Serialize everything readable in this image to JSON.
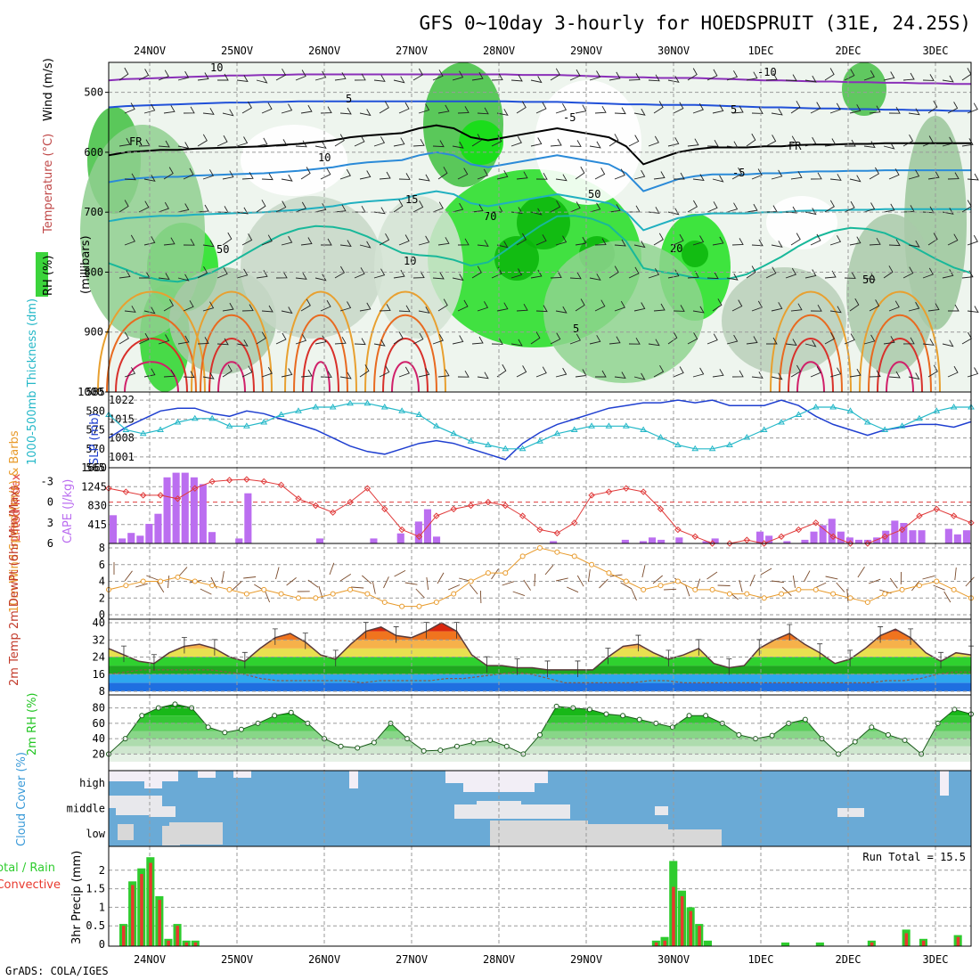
{
  "title": "GFS 0~10day 3-hourly for HOEDSPRUIT (31E, 24.25S)",
  "footer": "GrADS: COLA/IGES",
  "date_labels": [
    "24NOV",
    "25NOV",
    "26NOV",
    "27NOV",
    "28NOV",
    "29NOV",
    "30NOV",
    "1DEC",
    "2DEC",
    "3DEC"
  ],
  "colors": {
    "slp": "#1f3fd0",
    "thickness": "#25b8c8",
    "lifted": "#e03a3a",
    "cape": "#bb6ef0",
    "wind": "#e89a2a",
    "barb": "#7a4a2a",
    "rh_green": "#22c522",
    "cloud_blue": "#6aaad6",
    "rain_total": "#2ecc2e",
    "rain_conv": "#e8392e"
  },
  "chart_data": [
    {
      "type": "heatmap",
      "panel": "upper-air",
      "ylabel": "(millibars)",
      "legend_labels": [
        "RH (%)",
        "Temperature (°C)",
        "Wind (m/s)"
      ],
      "yticks": [
        500,
        600,
        700,
        800,
        900,
        1000
      ],
      "ylim": [
        1000,
        450
      ],
      "isotherm_labels": [
        "-10",
        "5",
        "-5",
        "FR",
        "5",
        "10",
        "-5",
        "15",
        "20",
        "10",
        "5",
        "FR"
      ],
      "rh_contour_labels": [
        "10",
        "50",
        "70",
        "50",
        "50"
      ],
      "freezing_level_mb": [
        605,
        600,
        598,
        596,
        596,
        594,
        593,
        592,
        591,
        590,
        588,
        586,
        583,
        580,
        575,
        572,
        570,
        568,
        560,
        555,
        560,
        575,
        580,
        575,
        570,
        565,
        560,
        565,
        570,
        575,
        590,
        620,
        610,
        600,
        595,
        592,
        592,
        592,
        590,
        590,
        588,
        587,
        587,
        586,
        586,
        585,
        585,
        585,
        585,
        585,
        585
      ],
      "minus10_level_mb": [
        480,
        478,
        477,
        476,
        475,
        474,
        473,
        472,
        472,
        471,
        471,
        470,
        470,
        470,
        470,
        470,
        470,
        470,
        470,
        470,
        470,
        470,
        470,
        470,
        471,
        471,
        471,
        472,
        473,
        474,
        475,
        475,
        476,
        476,
        476,
        477,
        478,
        479,
        480,
        480,
        481,
        482,
        482,
        483,
        483,
        484,
        484,
        485,
        485,
        486,
        486
      ]
    },
    {
      "type": "line",
      "panel": "thickness-slp",
      "ylabel": "1000-500mb Thickness (dm)",
      "y2label": "SLP (mb)",
      "yticks": [
        565,
        570,
        575,
        580,
        585
      ],
      "y2ticks": [
        1001,
        1008,
        1015,
        1022
      ],
      "series": [
        {
          "name": "SLP",
          "values": [
            1008,
            1012,
            1015,
            1018,
            1019,
            1019,
            1017,
            1016,
            1018,
            1017,
            1015,
            1013,
            1011,
            1008,
            1005,
            1003,
            1002,
            1004,
            1006,
            1007,
            1006,
            1004,
            1002,
            1000,
            1006,
            1010,
            1013,
            1015,
            1017,
            1019,
            1020,
            1021,
            1021,
            1022,
            1021,
            1022,
            1020,
            1020,
            1020,
            1022,
            1020,
            1016,
            1013,
            1011,
            1009,
            1011,
            1012,
            1013,
            1013,
            1012,
            1014
          ]
        },
        {
          "name": "Thickness",
          "values": [
            579,
            575,
            574,
            575,
            577,
            578,
            578,
            576,
            576,
            577,
            579,
            580,
            581,
            581,
            582,
            582,
            581,
            580,
            579,
            576,
            574,
            572,
            571,
            570,
            570,
            572,
            574,
            575,
            576,
            576,
            576,
            575,
            573,
            571,
            570,
            570,
            571,
            573,
            575,
            577,
            579,
            581,
            581,
            580,
            577,
            575,
            576,
            578,
            580,
            581,
            581
          ]
        }
      ]
    },
    {
      "type": "bar",
      "panel": "lifted-cape",
      "ylabel": "Lifted Index",
      "y2label": "CAPE (J/kg)",
      "yticks": [
        -3,
        0,
        3,
        6
      ],
      "y2ticks": [
        415,
        830,
        1245,
        1660
      ],
      "series": [
        {
          "name": "CAPE",
          "values": [
            620,
            110,
            230,
            170,
            430,
            650,
            1450,
            1550,
            1550,
            1450,
            1300,
            250,
            0,
            0,
            110,
            1100,
            0,
            0,
            0,
            110,
            0,
            0,
            0,
            0,
            0,
            0,
            0,
            0,
            0,
            0,
            0,
            0,
            0,
            0,
            0,
            0,
            0,
            0,
            0,
            0,
            0,
            0,
            0,
            0,
            0,
            0,
            0,
            0,
            0,
            0,
            0,
            0,
            0,
            0,
            0,
            0,
            0,
            130,
            0,
            0,
            0,
            0,
            0,
            0,
            0,
            0,
            0,
            0,
            0,
            0,
            0,
            0,
            0,
            0,
            0,
            0,
            0,
            0,
            0,
            0,
            0,
            0,
            0,
            0,
            0,
            0,
            0,
            0,
            0,
            0,
            0,
            0,
            0,
            0,
            0,
            0,
            0,
            0,
            0,
            0,
            0,
            0,
            0,
            0,
            0,
            0,
            0,
            0,
            0,
            0,
            0,
            0,
            0,
            0
          ]
        },
        {
          "name": "Lifted Index",
          "values": [
            -2,
            -1.5,
            -1,
            -1,
            -0.5,
            -2,
            -3,
            -3.2,
            -3.3,
            -3,
            -2.5,
            -0.5,
            0.5,
            1.5,
            0,
            -2,
            1,
            4,
            5,
            2,
            1,
            0.5,
            0,
            0.5,
            2,
            4,
            4.5,
            3,
            -1,
            -1.5,
            -2,
            -1.5,
            1,
            4,
            5,
            6,
            6,
            5.5,
            6,
            5,
            4,
            3,
            5,
            6,
            6,
            5,
            4,
            2,
            1,
            2,
            3
          ]
        }
      ]
    },
    {
      "type": "line",
      "panel": "wind",
      "ylabel": "10m Wind Speed (m/s) & Barbs",
      "yticks": [
        0,
        2,
        4,
        6,
        8
      ],
      "series": [
        {
          "name": "Speed",
          "values": [
            3,
            3.5,
            4,
            4,
            4.5,
            4,
            3.5,
            3,
            2.5,
            3,
            2.5,
            2,
            2,
            2.5,
            3,
            2.5,
            1.5,
            1,
            1,
            1.5,
            2.5,
            4,
            5,
            5,
            7,
            8,
            7.5,
            7,
            6,
            5,
            4,
            3,
            3.5,
            4,
            3,
            3,
            2.5,
            2.5,
            2,
            2.5,
            3,
            3,
            2.5,
            2,
            1.5,
            2.5,
            3,
            3.5,
            4,
            3,
            2
          ]
        }
      ]
    },
    {
      "type": "area",
      "panel": "temperature",
      "ylabel": "2m Temp 2m DewPt (6hr Min/Max)",
      "yticks": [
        8,
        16,
        24,
        32,
        40
      ],
      "series": [
        {
          "name": "2m Temp",
          "values": [
            28,
            25,
            22,
            21,
            26,
            29,
            30,
            28,
            24,
            22,
            28,
            33,
            35,
            31,
            25,
            23,
            30,
            36,
            38,
            34,
            33,
            36,
            40,
            36,
            25,
            20,
            20,
            19,
            19,
            18,
            18,
            18,
            18,
            24,
            29,
            30,
            26,
            23,
            25,
            28,
            21,
            19,
            20,
            28,
            32,
            35,
            30,
            26,
            21,
            23,
            28,
            34,
            37,
            33,
            26,
            22,
            26,
            25
          ]
        },
        {
          "name": "2m DewPt",
          "values": [
            16,
            17,
            18,
            18,
            18,
            18,
            18,
            17,
            16,
            14,
            13,
            13,
            13,
            13,
            13,
            12,
            13,
            13,
            13,
            13,
            14,
            14,
            15,
            16,
            17,
            16,
            14,
            12,
            12,
            12,
            12,
            12,
            13,
            13,
            12,
            12,
            12,
            12,
            12,
            12,
            12,
            12,
            12,
            12,
            12,
            12,
            13,
            13,
            14,
            16,
            17,
            17
          ]
        }
      ]
    },
    {
      "type": "area",
      "panel": "rh",
      "ylabel": "2m RH (%)",
      "yticks": [
        20,
        40,
        60,
        80
      ],
      "series": [
        {
          "name": "2m RH",
          "values": [
            20,
            40,
            70,
            80,
            85,
            80,
            55,
            48,
            52,
            60,
            70,
            74,
            60,
            40,
            30,
            28,
            35,
            60,
            40,
            24,
            25,
            30,
            35,
            38,
            30,
            20,
            45,
            82,
            80,
            78,
            72,
            70,
            65,
            60,
            55,
            70,
            70,
            60,
            45,
            40,
            44,
            60,
            65,
            40,
            20,
            36,
            55,
            45,
            38,
            20,
            60,
            78,
            72
          ]
        }
      ]
    },
    {
      "type": "heatmap",
      "panel": "cloud",
      "ylabel": "Cloud Cover (%)",
      "yticks": [
        "high",
        "middle",
        "low"
      ]
    },
    {
      "type": "bar",
      "panel": "precip",
      "ylabel": "3hr Precip (mm)",
      "yticks": [
        0,
        0.5,
        1,
        1.5,
        2
      ],
      "legend_labels": [
        "Total / Rain",
        "Convective"
      ],
      "annotation": "Run Total = 15.5",
      "series": [
        {
          "name": "Total / Rain",
          "values": [
            0.55,
            1.7,
            2.05,
            2.35,
            1.3,
            0.15,
            0.55,
            0.1,
            0.1,
            0,
            0,
            0,
            0,
            0,
            0,
            0,
            0,
            0,
            0,
            0,
            0,
            0,
            0,
            0,
            0,
            0,
            0,
            0,
            0,
            0,
            0,
            0,
            0,
            0,
            0,
            0,
            0,
            0,
            0,
            0,
            0,
            0,
            0,
            0,
            0,
            0,
            0,
            0,
            0,
            0,
            0,
            0,
            0,
            0,
            0,
            0,
            0,
            0,
            0,
            0,
            0,
            0,
            0,
            0,
            0,
            0,
            0,
            0,
            0,
            0,
            0,
            0,
            0,
            0,
            0,
            0,
            0,
            0,
            0,
            0,
            0,
            0,
            0,
            0,
            0,
            0,
            0,
            0,
            0,
            0,
            0,
            0,
            0
          ]
        },
        {
          "name": "Convective",
          "values": [
            0.5,
            1.6,
            1.9,
            2.2,
            1.2,
            0.1,
            0.5,
            0.05,
            0.05,
            0,
            0,
            0,
            0,
            0,
            0,
            0,
            0,
            0,
            0,
            0,
            0,
            0,
            0,
            0,
            0,
            0,
            0,
            0,
            0,
            0,
            0,
            0,
            0,
            0,
            0,
            0,
            0,
            0,
            0,
            0,
            0,
            0,
            0,
            0,
            0,
            0,
            0,
            0,
            0,
            0,
            0,
            0,
            0,
            0,
            0,
            0,
            0,
            0,
            0,
            0,
            0,
            0,
            0,
            0,
            0,
            0,
            0,
            0,
            0,
            0,
            0,
            0,
            0,
            0,
            0,
            0,
            0,
            0,
            0,
            0,
            0,
            0,
            0,
            0,
            0,
            0,
            0,
            0,
            0,
            0,
            0,
            0,
            0,
            0
          ]
        }
      ],
      "late_bars": {
        "x_index": [
          31.5,
          32,
          32.5,
          33,
          33.5,
          34,
          34.5,
          35,
          39,
          41,
          44,
          46,
          47,
          49
        ],
        "total": [
          0.1,
          0.2,
          2.25,
          1.45,
          1.0,
          0.55,
          0.1,
          0,
          0.05,
          0.05,
          0.1,
          0.4,
          0.15,
          0.25
        ],
        "conv": [
          0.05,
          0.1,
          1.55,
          1.3,
          0.9,
          0.5,
          0,
          0,
          0,
          0,
          0.05,
          0.3,
          0.1,
          0.2
        ]
      }
    }
  ]
}
